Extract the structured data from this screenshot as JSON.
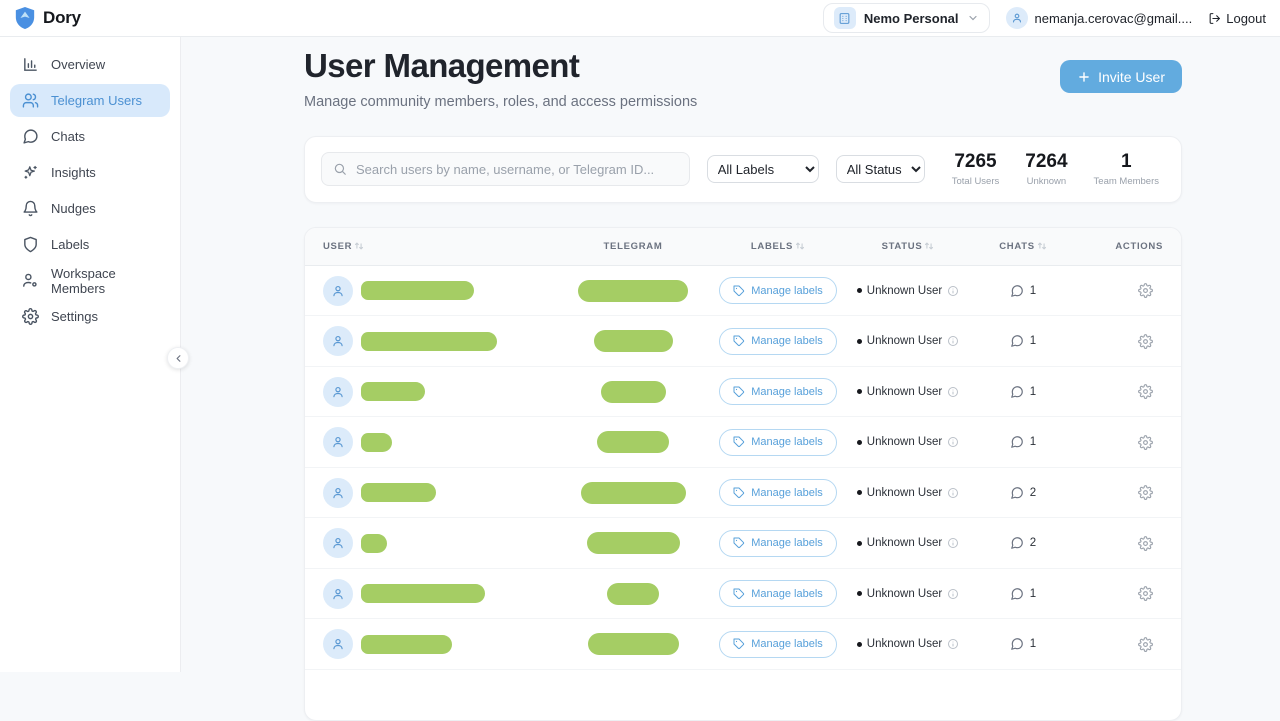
{
  "topbar": {
    "brand": "Dory",
    "workspace_name": "Nemo Personal",
    "user_email": "nemanja.cerovac@gmail....",
    "logout_label": "Logout"
  },
  "sidebar": {
    "items": [
      {
        "label": "Overview",
        "icon": "bar-chart-icon",
        "active": false
      },
      {
        "label": "Telegram Users",
        "icon": "users-icon",
        "active": true
      },
      {
        "label": "Chats",
        "icon": "chat-bubble-icon",
        "active": false
      },
      {
        "label": "Insights",
        "icon": "sparkles-icon",
        "active": false
      },
      {
        "label": "Nudges",
        "icon": "bell-icon",
        "active": false
      },
      {
        "label": "Labels",
        "icon": "shield-icon",
        "active": false
      },
      {
        "label": "Workspace Members",
        "icon": "member-icon",
        "active": false
      },
      {
        "label": "Settings",
        "icon": "gear-icon",
        "active": false
      }
    ]
  },
  "header": {
    "title": "User Management",
    "subtitle": "Manage community members, roles, and access permissions",
    "invite_button_label": "Invite User"
  },
  "filters": {
    "search_placeholder": "Search users by name, username, or Telegram ID...",
    "labels_filter_value": "All Labels",
    "status_filter_value": "All Status",
    "stats": [
      {
        "value": "7265",
        "label": "Total Users"
      },
      {
        "value": "7264",
        "label": "Unknown"
      },
      {
        "value": "1",
        "label": "Team Members"
      }
    ]
  },
  "table": {
    "columns": [
      {
        "label": "User",
        "sortable": true
      },
      {
        "label": "Telegram",
        "sortable": false
      },
      {
        "label": "Labels",
        "sortable": true
      },
      {
        "label": "Status",
        "sortable": true
      },
      {
        "label": "Chats",
        "sortable": true
      },
      {
        "label": "Actions",
        "sortable": false
      }
    ],
    "manage_labels_label": "Manage labels",
    "rows": [
      {
        "name_redact_width": 113,
        "telegram_redact_width": 110,
        "status": "Unknown User",
        "chats": "1"
      },
      {
        "name_redact_width": 136,
        "telegram_redact_width": 79,
        "status": "Unknown User",
        "chats": "1"
      },
      {
        "name_redact_width": 64,
        "telegram_redact_width": 65,
        "status": "Unknown User",
        "chats": "1"
      },
      {
        "name_redact_width": 31,
        "telegram_redact_width": 72,
        "status": "Unknown User",
        "chats": "1"
      },
      {
        "name_redact_width": 75,
        "telegram_redact_width": 105,
        "status": "Unknown User",
        "chats": "2"
      },
      {
        "name_redact_width": 26,
        "telegram_redact_width": 93,
        "status": "Unknown User",
        "chats": "2"
      },
      {
        "name_redact_width": 124,
        "telegram_redact_width": 52,
        "status": "Unknown User",
        "chats": "1"
      },
      {
        "name_redact_width": 91,
        "telegram_redact_width": 91,
        "status": "Unknown User",
        "chats": "1"
      }
    ]
  },
  "colors": {
    "accent_blue": "#62abdf",
    "active_nav_bg": "#d8e9fb",
    "active_nav_text": "#4b90d2",
    "redaction_green": "#a5cd64",
    "avatar_bg": "#dcebfa",
    "page_bg": "#f7f9fb",
    "table_header_bg": "#f9fafb"
  }
}
